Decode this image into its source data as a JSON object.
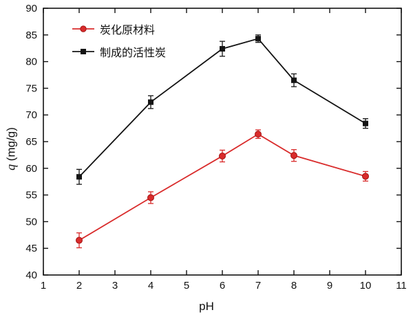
{
  "chart_data": {
    "type": "line",
    "x": [
      2,
      4,
      6,
      7,
      8,
      10
    ],
    "series": [
      {
        "name": "炭化原材料",
        "color": "#d92b2b",
        "marker": "circle",
        "values": [
          46.5,
          54.5,
          62.3,
          66.4,
          62.4,
          58.5
        ],
        "errors": [
          1.4,
          1.1,
          1.1,
          0.8,
          1.1,
          0.9
        ]
      },
      {
        "name": "制成的活性炭",
        "color": "#141414",
        "marker": "square",
        "values": [
          58.4,
          72.4,
          82.4,
          84.3,
          76.5,
          68.4
        ],
        "errors": [
          1.4,
          1.2,
          1.4,
          0.7,
          1.2,
          0.9
        ]
      }
    ],
    "title": "",
    "xlabel": "pH",
    "ylabel_var": "q",
    "ylabel_unit": " (mg/g)",
    "xlim": [
      1,
      11
    ],
    "ylim": [
      40,
      90
    ],
    "xticks": [
      1,
      2,
      3,
      4,
      5,
      6,
      7,
      8,
      9,
      10,
      11
    ],
    "yticks": [
      40,
      45,
      50,
      55,
      60,
      65,
      70,
      75,
      80,
      85,
      90
    ],
    "grid": false,
    "legend_position": "upper-left-inside",
    "frame": true
  }
}
